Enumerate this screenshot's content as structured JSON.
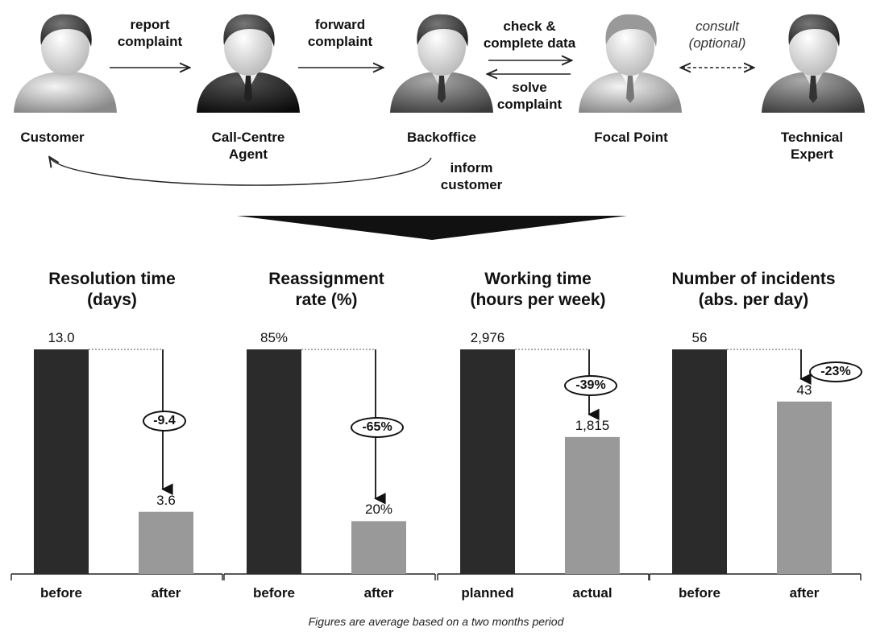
{
  "flow": {
    "actors": {
      "customer": "Customer",
      "agent_line1": "Call-Centre",
      "agent_line2": "Agent",
      "backoffice": "Backoffice",
      "focal": "Focal Point",
      "expert_line1": "Technical",
      "expert_line2": "Expert"
    },
    "arrows": {
      "report_line1": "report",
      "report_line2": "complaint",
      "forward_line1": "forward",
      "forward_line2": "complaint",
      "check_line1": "check &",
      "check_line2": "complete data",
      "solve_line1": "solve",
      "solve_line2": "complaint",
      "consult_line1": "consult",
      "consult_line2": "(optional)",
      "inform_line1": "inform",
      "inform_line2": "customer"
    }
  },
  "chart_data": [
    {
      "type": "bar",
      "title_line1": "Resolution time",
      "title_line2": "(days)",
      "categories": [
        "before",
        "after"
      ],
      "values": [
        13.0,
        3.6
      ],
      "value_labels": [
        "13.0",
        "3.6"
      ],
      "change_label": "-9.4"
    },
    {
      "type": "bar",
      "title_line1": "Reassignment",
      "title_line2": "rate (%)",
      "categories": [
        "before",
        "after"
      ],
      "values": [
        85,
        20
      ],
      "value_labels": [
        "85%",
        "20%"
      ],
      "change_label": "-65%"
    },
    {
      "type": "bar",
      "title_line1": "Working time",
      "title_line2": "(hours per week)",
      "categories": [
        "planned",
        "actual"
      ],
      "values": [
        2976,
        1815
      ],
      "value_labels": [
        "2,976",
        "1,815"
      ],
      "change_label": "-39%"
    },
    {
      "type": "bar",
      "title_line1": "Number of incidents",
      "title_line2": "(abs. per day)",
      "categories": [
        "before",
        "after"
      ],
      "values": [
        56,
        43
      ],
      "value_labels": [
        "56",
        "43"
      ],
      "change_label": "-23%"
    }
  ],
  "footnote": "Figures are average based on a two months period",
  "colors": {
    "bar_before": "#2b2b2b",
    "bar_after": "#999999"
  }
}
